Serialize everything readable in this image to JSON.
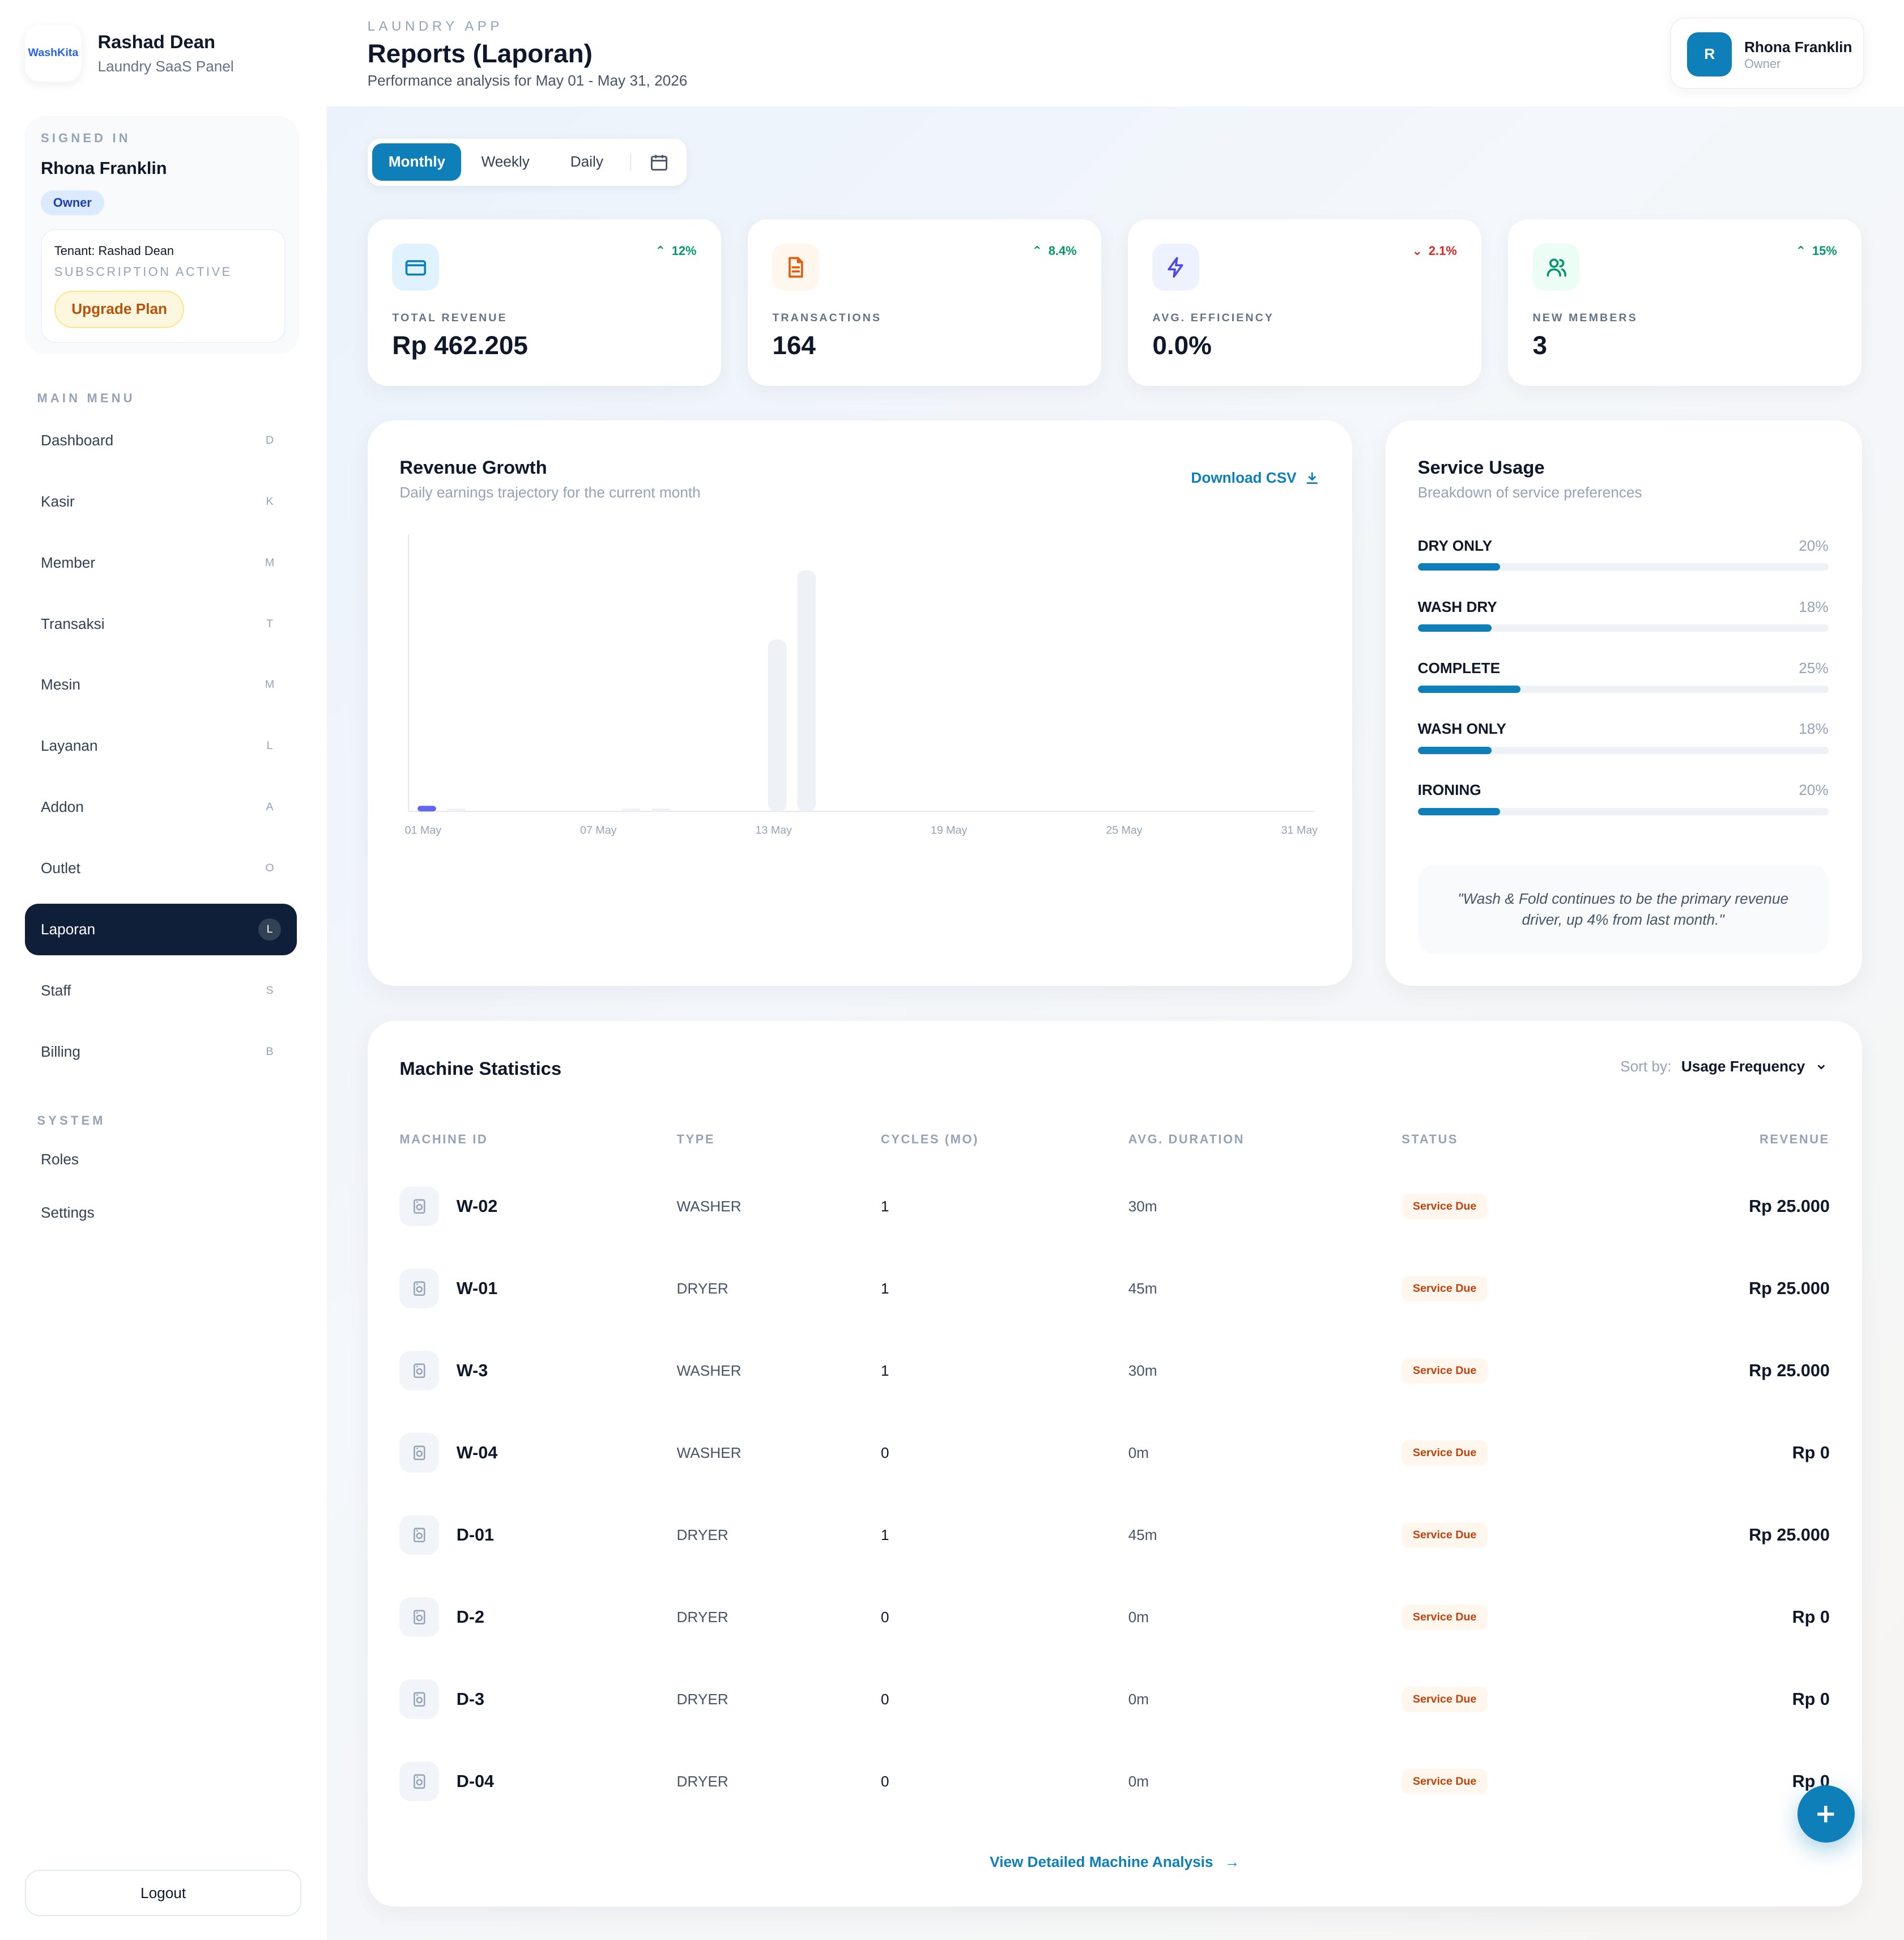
{
  "brand": {
    "logo_text": "WashKita",
    "name": "Rashad Dean",
    "subtitle": "Laundry SaaS Panel"
  },
  "signed_in": {
    "caption": "SIGNED IN",
    "name": "Rhona Franklin",
    "role": "Owner",
    "tenant": "Tenant: Rashad Dean",
    "subscription": "SUBSCRIPTION ACTIVE",
    "upgrade_label": "Upgrade Plan"
  },
  "menu": {
    "main_caption": "MAIN MENU",
    "items": [
      {
        "label": "Dashboard",
        "key": "D"
      },
      {
        "label": "Kasir",
        "key": "K"
      },
      {
        "label": "Member",
        "key": "M"
      },
      {
        "label": "Transaksi",
        "key": "T"
      },
      {
        "label": "Mesin",
        "key": "M"
      },
      {
        "label": "Layanan",
        "key": "L"
      },
      {
        "label": "Addon",
        "key": "A"
      },
      {
        "label": "Outlet",
        "key": "O"
      },
      {
        "label": "Laporan",
        "key": "L",
        "active": true
      },
      {
        "label": "Staff",
        "key": "S"
      },
      {
        "label": "Billing",
        "key": "B"
      }
    ],
    "system_caption": "SYSTEM",
    "system_items": [
      {
        "label": "Roles"
      },
      {
        "label": "Settings"
      }
    ],
    "logout_label": "Logout"
  },
  "header": {
    "app_caption": "LAUNDRY APP",
    "title": "Reports (Laporan)",
    "subtitle": "Performance analysis for May 01 - May 31, 2026",
    "user": {
      "initial": "R",
      "name": "Rhona Franklin",
      "role": "Owner"
    }
  },
  "period_tabs": {
    "items": [
      {
        "label": "Monthly",
        "active": true
      },
      {
        "label": "Weekly"
      },
      {
        "label": "Daily"
      }
    ],
    "calendar_icon": "calendar-icon"
  },
  "kpis": [
    {
      "label": "TOTAL REVENUE",
      "value": "Rp 462.205",
      "trend": "12%",
      "direction": "up",
      "icon": "card-icon",
      "color": "#0e7fb8",
      "bg": "#e0f2fe"
    },
    {
      "label": "TRANSACTIONS",
      "value": "164",
      "trend": "8.4%",
      "direction": "up",
      "icon": "document-icon",
      "color": "#ea580c",
      "bg": "#fff7ed"
    },
    {
      "label": "AVG. EFFICIENCY",
      "value": "0.0%",
      "trend": "2.1%",
      "direction": "down",
      "icon": "lightning-icon",
      "color": "#4f46e5",
      "bg": "#eef2ff"
    },
    {
      "label": "NEW MEMBERS",
      "value": "3",
      "trend": "15%",
      "direction": "up",
      "icon": "users-icon",
      "color": "#059669",
      "bg": "#ecfdf5"
    }
  ],
  "revenue_growth": {
    "title": "Revenue Growth",
    "subtitle": "Daily earnings trajectory for the current month",
    "download_label": "Download CSV"
  },
  "chart_data": {
    "type": "bar",
    "categories": [
      "01 May",
      "02 May",
      "03 May",
      "04 May",
      "05 May",
      "06 May",
      "07 May",
      "08 May",
      "09 May",
      "10 May",
      "11 May",
      "12 May",
      "13 May",
      "14 May",
      "15 May",
      "16 May",
      "17 May",
      "18 May",
      "19 May",
      "20 May",
      "21 May",
      "22 May",
      "23 May",
      "24 May",
      "25 May",
      "26 May",
      "27 May",
      "28 May",
      "29 May",
      "30 May",
      "31 May"
    ],
    "tick_labels": [
      "01 May",
      "07 May",
      "13 May",
      "19 May",
      "25 May",
      "31 May"
    ],
    "values": [
      2,
      1,
      0,
      0,
      0,
      0,
      0,
      1,
      1,
      0,
      0,
      0,
      62,
      87,
      0,
      0,
      0,
      0,
      0,
      0,
      0,
      0,
      0,
      0,
      0,
      0,
      0,
      0,
      0,
      0,
      0
    ],
    "highlight_index": 0,
    "ylim": [
      0,
      100
    ],
    "grid": false
  },
  "service_usage": {
    "title": "Service Usage",
    "subtitle": "Breakdown of service preferences",
    "items": [
      {
        "name": "DRY ONLY",
        "label": "20%",
        "value": 20
      },
      {
        "name": "WASH DRY",
        "label": "18%",
        "value": 18
      },
      {
        "name": "COMPLETE",
        "label": "25%",
        "value": 25
      },
      {
        "name": "WASH ONLY",
        "label": "18%",
        "value": 18
      },
      {
        "name": "IRONING",
        "label": "20%",
        "value": 20
      }
    ],
    "quote": "\"Wash & Fold continues to be the primary revenue driver, up 4% from last month.\""
  },
  "machines": {
    "title": "Machine Statistics",
    "sort_prefix": "Sort by:",
    "sort_value": "Usage Frequency",
    "columns": [
      "MACHINE ID",
      "TYPE",
      "CYCLES (MO)",
      "AVG. DURATION",
      "STATUS",
      "REVENUE"
    ],
    "rows": [
      {
        "id": "W-02",
        "type": "WASHER",
        "cycles": "1",
        "duration": "30m",
        "status": "Service Due",
        "revenue": "Rp 25.000"
      },
      {
        "id": "W-01",
        "type": "DRYER",
        "cycles": "1",
        "duration": "45m",
        "status": "Service Due",
        "revenue": "Rp 25.000"
      },
      {
        "id": "W-3",
        "type": "WASHER",
        "cycles": "1",
        "duration": "30m",
        "status": "Service Due",
        "revenue": "Rp 25.000"
      },
      {
        "id": "W-04",
        "type": "WASHER",
        "cycles": "0",
        "duration": "0m",
        "status": "Service Due",
        "revenue": "Rp 0"
      },
      {
        "id": "D-01",
        "type": "DRYER",
        "cycles": "1",
        "duration": "45m",
        "status": "Service Due",
        "revenue": "Rp 25.000"
      },
      {
        "id": "D-2",
        "type": "DRYER",
        "cycles": "0",
        "duration": "0m",
        "status": "Service Due",
        "revenue": "Rp 0"
      },
      {
        "id": "D-3",
        "type": "DRYER",
        "cycles": "0",
        "duration": "0m",
        "status": "Service Due",
        "revenue": "Rp 0"
      },
      {
        "id": "D-04",
        "type": "DRYER",
        "cycles": "0",
        "duration": "0m",
        "status": "Service Due",
        "revenue": "Rp 0"
      }
    ],
    "view_link": "View Detailed Machine Analysis"
  },
  "fab_icon": "plus-icon"
}
